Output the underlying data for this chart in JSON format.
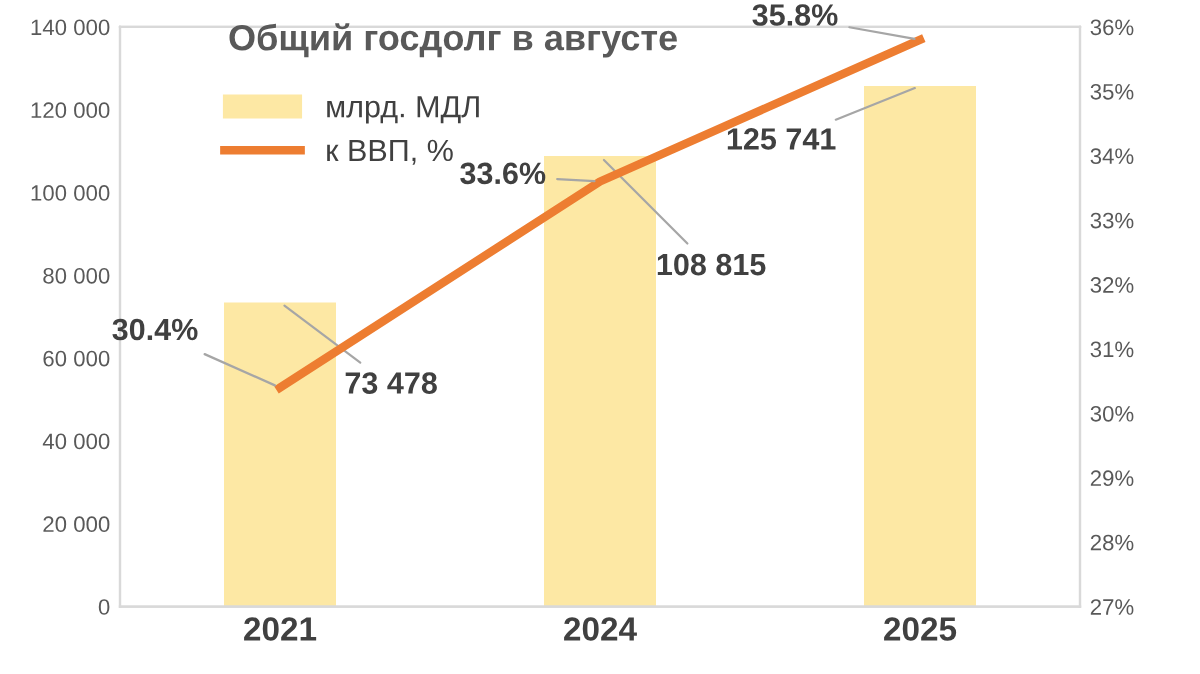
{
  "chart_data": {
    "type": "bar",
    "title": "Общий госдолг в августе",
    "categories": [
      "2021",
      "2024",
      "2025"
    ],
    "series": [
      {
        "name": "млрд. МДЛ",
        "color": "#fde8a4",
        "values": [
          73478,
          108815,
          125741
        ],
        "value_labels": [
          "73 478",
          "108 815",
          "125 741"
        ]
      },
      {
        "name": "к ВВП, %",
        "type": "line",
        "axis": "y2",
        "color": "#ed7d31",
        "values": [
          30.4,
          33.6,
          35.8
        ],
        "value_labels": [
          "30.4%",
          "33.6%",
          "35.8%"
        ]
      }
    ],
    "ylim": [
      0,
      140000
    ],
    "yticks": [
      0,
      {
        "value": 20000,
        "label": "20 000"
      },
      {
        "value": 40000,
        "label": "40 000"
      },
      {
        "value": 60000,
        "label": "60 000"
      },
      {
        "value": 80000,
        "label": "80 000"
      },
      {
        "value": 100000,
        "label": "100 000"
      },
      {
        "value": 120000,
        "label": "120 000"
      },
      {
        "value": 140000,
        "label": "140 000"
      }
    ],
    "y2lim": [
      27,
      36
    ],
    "y2ticks": [
      {
        "value": 27,
        "label": "27%"
      },
      {
        "value": 28,
        "label": "28%"
      },
      {
        "value": 29,
        "label": "29%"
      },
      {
        "value": 30,
        "label": "30%"
      },
      {
        "value": 31,
        "label": "31%"
      },
      {
        "value": 32,
        "label": "32%"
      },
      {
        "value": 33,
        "label": "33%"
      },
      {
        "value": 34,
        "label": "34%"
      },
      {
        "value": 35,
        "label": "35%"
      },
      {
        "value": 36,
        "label": "36%"
      }
    ],
    "legend": "top left",
    "grid": false,
    "marker": "none",
    "line_style": "solid"
  }
}
